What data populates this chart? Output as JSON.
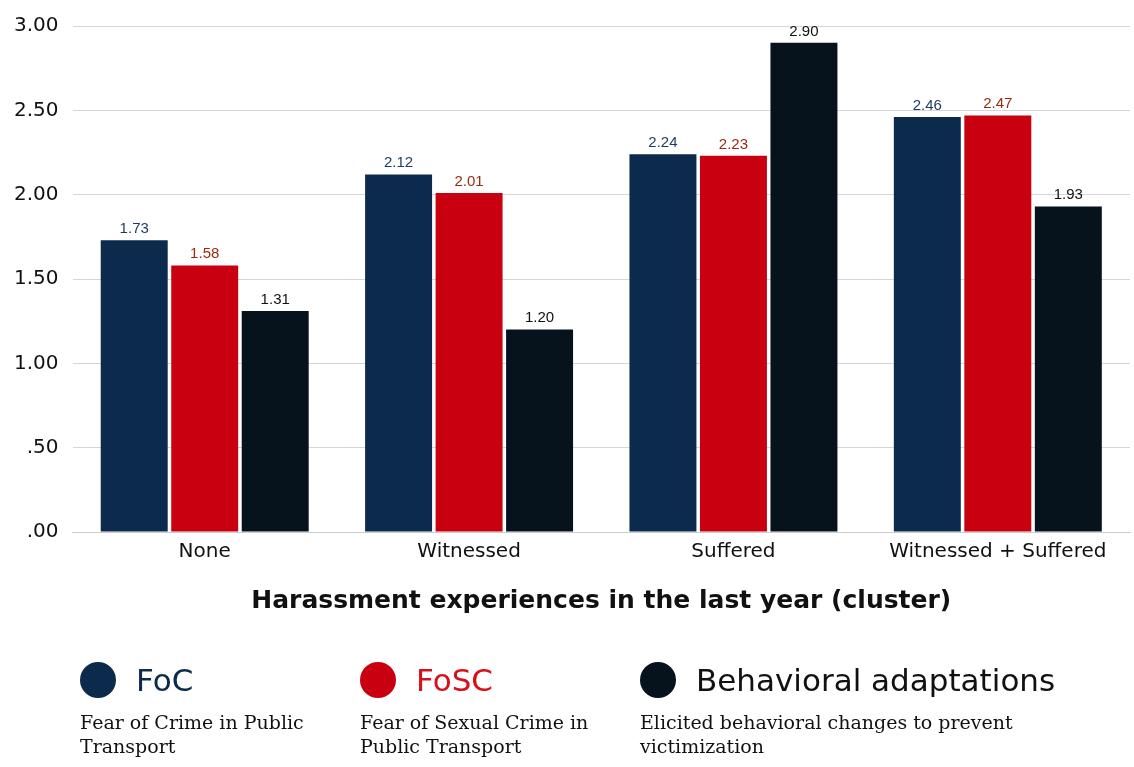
{
  "chart_data": {
    "type": "bar",
    "xlabel": "Harassment experiences in the last year (cluster)",
    "categories": [
      "None",
      "Witnessed",
      "Suffered",
      "Witnessed + Suffered"
    ],
    "series": [
      {
        "name": "FoC",
        "color": "#0b2a4c",
        "values": [
          1.73,
          2.12,
          2.24,
          2.46
        ]
      },
      {
        "name": "FoSC",
        "color": "#c8000f",
        "values": [
          1.58,
          2.01,
          2.23,
          2.47
        ]
      },
      {
        "name": "Behavioral adaptations",
        "color": "#06121c",
        "values": [
          1.31,
          1.2,
          2.9,
          1.93
        ],
        "value_labels": [
          "1.31",
          "1.20",
          "2.90",
          "1.93"
        ]
      }
    ],
    "ylim": [
      0,
      3
    ],
    "yticks": [
      {
        "value": 0,
        "label": ".00"
      },
      {
        "value": 0.5,
        "label": ".50"
      },
      {
        "value": 1,
        "label": "1.00"
      },
      {
        "value": 1.5,
        "label": "1.50"
      },
      {
        "value": 2,
        "label": "2.00"
      },
      {
        "value": 2.5,
        "label": "2.50"
      },
      {
        "value": 3,
        "label": "3.00"
      }
    ],
    "grid": "y",
    "legend": "bottom",
    "data_labels": true,
    "annotations": [
      "Fear of Crime in Public Transport",
      "Fear of Sexual Crime in Public Transport",
      "Elicited behavioral changes to prevent victimization"
    ]
  }
}
